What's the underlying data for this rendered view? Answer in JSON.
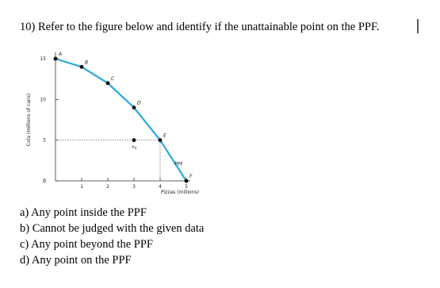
{
  "question": "10) Refer to the figure below and identify if the unattainable point on the PPF.",
  "chart_data": {
    "type": "line",
    "x_label": "Pizzas (millions)",
    "y_label": "Cola (millions of cans)",
    "curve_label": "PPF",
    "color": "#29a8e0",
    "points": [
      {
        "label": "A",
        "x": 0,
        "y": 15
      },
      {
        "label": "B",
        "x": 1,
        "y": 14
      },
      {
        "label": "C",
        "x": 2,
        "y": 12
      },
      {
        "label": "D",
        "x": 3,
        "y": 9
      },
      {
        "label": "E",
        "x": 4,
        "y": 5
      },
      {
        "label": "F",
        "x": 5,
        "y": 0
      }
    ],
    "extra_point": {
      "label": "Z",
      "x": 3,
      "y": 5
    },
    "guide_point": 4,
    "xlim": [
      0,
      5
    ],
    "ylim": [
      0,
      15
    ],
    "xticks": [
      0,
      1,
      2,
      3,
      4,
      5
    ],
    "yticks": [
      0,
      5,
      10,
      15
    ]
  },
  "options": [
    "a) Any point inside the PPF",
    "b) Cannot be judged with the given data",
    "c) Any point beyond the PPF",
    "d) Any point on the PPF"
  ]
}
